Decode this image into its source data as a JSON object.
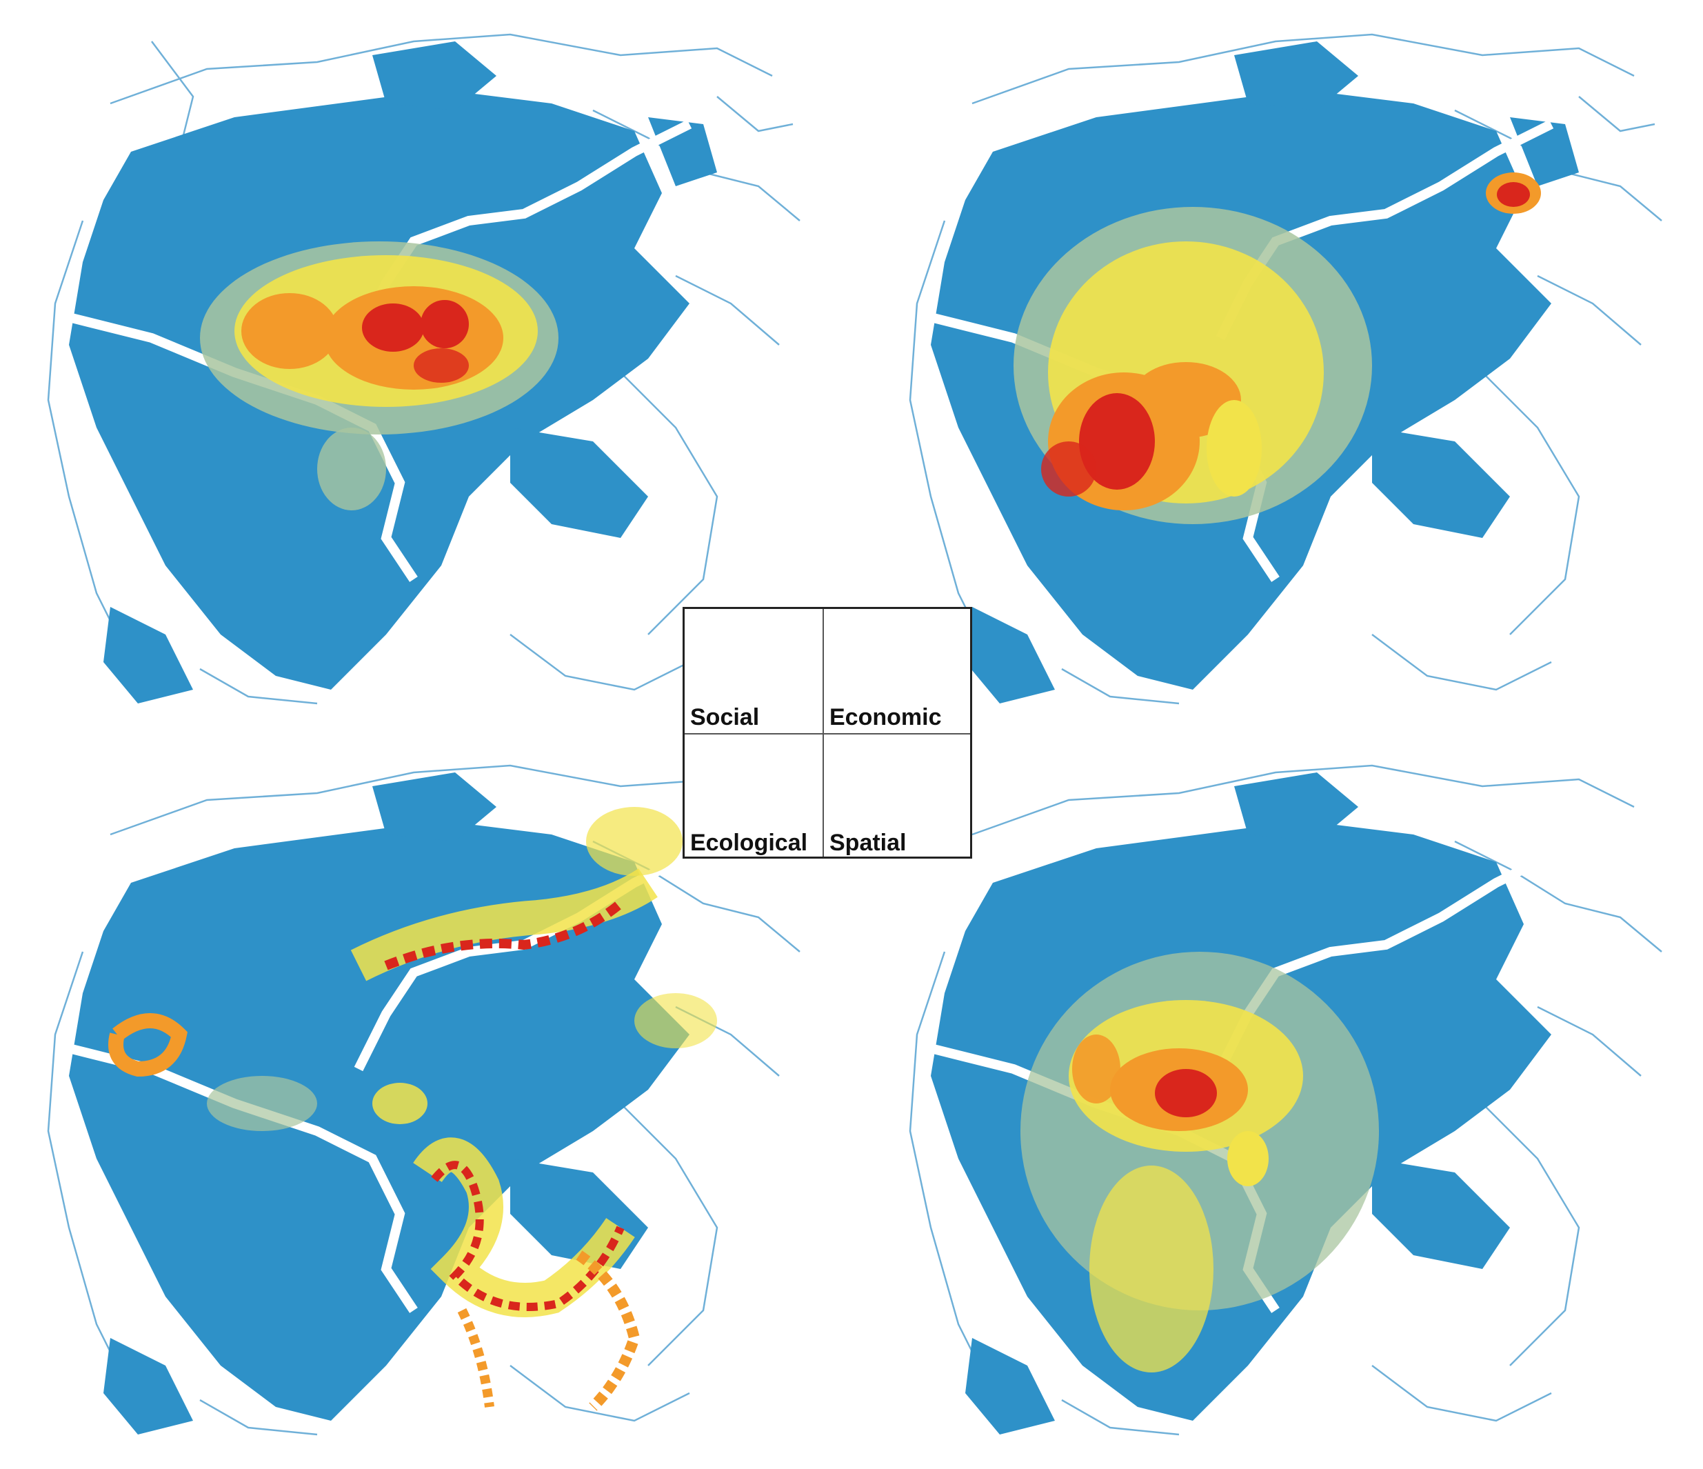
{
  "legend": {
    "social": "Social",
    "economic": "Economic",
    "ecological": "Ecological",
    "spatial": "Spatial"
  },
  "colors": {
    "base": "#2e91c8",
    "road": "#6fb0d8",
    "low": "#a9c6a0",
    "mid": "#f2e34a",
    "high": "#f39a2a",
    "very_high": "#d9261c"
  }
}
